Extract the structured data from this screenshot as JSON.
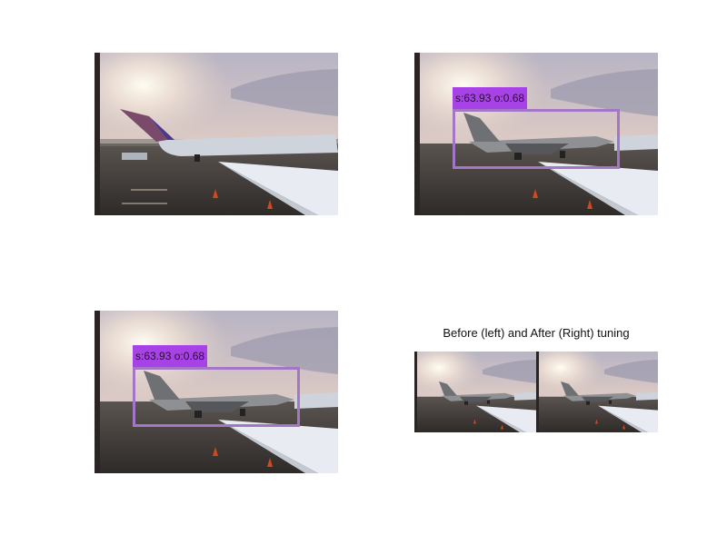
{
  "panels": [
    {
      "name": "original-image"
    },
    {
      "name": "detection-before",
      "detection": {
        "score_text": "s:63.93 o:0.68",
        "box_color": "#a477c6",
        "label_bg": "#a742e6"
      }
    },
    {
      "name": "detection-after",
      "detection": {
        "score_text": "s:63.93 o:0.68",
        "box_color": "#a477c6",
        "label_bg": "#a742e6"
      }
    }
  ],
  "comparison": {
    "title": "Before (left) and After (Right) tuning"
  },
  "colors": {
    "background": "#ffffff",
    "sky_top": "#b8b4c4",
    "tarmac": "#3a3633"
  }
}
